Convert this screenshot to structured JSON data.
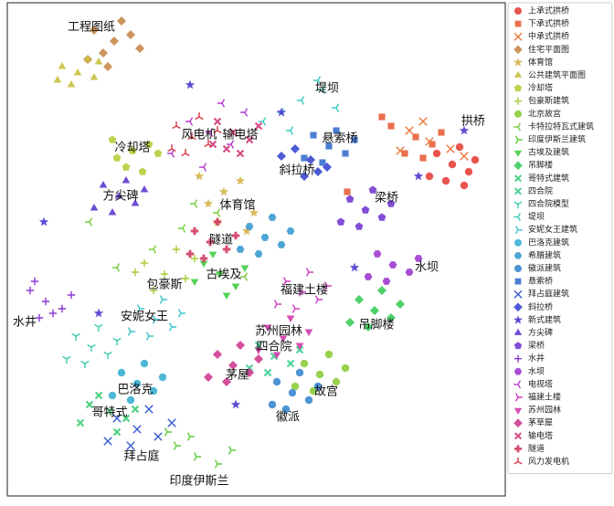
{
  "chart_data": {
    "type": "scatter",
    "xlim": [
      0,
      545
    ],
    "ylim": [
      0,
      540
    ],
    "legend": "right",
    "series": [
      {
        "name": "上承式拱桥",
        "color": "#e8413c",
        "marker": "circle",
        "x": [
          487,
          470,
          505,
          480,
          512,
          495,
          462,
          500
        ],
        "y": [
          363,
          375,
          355,
          345,
          368,
          382,
          350,
          340
        ]
      },
      {
        "name": "下承式拱桥",
        "color": "#e85f3a",
        "marker": "square",
        "x": [
          447,
          420,
          465,
          435,
          475,
          410,
          372,
          455
        ],
        "y": [
          393,
          405,
          385,
          375,
          398,
          415,
          333,
          370
        ]
      },
      {
        "name": "中承式拱桥",
        "color": "#e8783a",
        "marker": "x",
        "x": [
          462,
          440,
          485,
          455,
          500,
          430
        ],
        "y": [
          388,
          400,
          380,
          410,
          372,
          378
        ]
      },
      {
        "name": "住宅平面图",
        "color": "#c8894a",
        "marker": "diamond",
        "x": [
          117,
          95,
          135,
          105,
          145,
          125,
          88,
          110
        ],
        "y": [
          498,
          510,
          505,
          485,
          490,
          520,
          478,
          470
        ]
      },
      {
        "name": "体育馆",
        "color": "#d4b24a",
        "marker": "star",
        "x": [
          237,
          220,
          255,
          270,
          230,
          210,
          262
        ],
        "y": [
          333,
          320,
          345,
          310,
          300,
          350,
          290
        ]
      },
      {
        "name": "公共建筑平面图",
        "color": "#c8c040",
        "marker": "triangle-up",
        "x": [
          77,
          60,
          95,
          70,
          88,
          55,
          100
        ],
        "y": [
          463,
          470,
          458,
          450,
          478,
          455,
          475
        ]
      },
      {
        "name": "冷却塔",
        "color": "#b8cc3a",
        "marker": "pentagon",
        "x": [
          137,
          120,
          155,
          130,
          165,
          115,
          148
        ],
        "y": [
          378,
          370,
          385,
          360,
          375,
          390,
          355
        ]
      },
      {
        "name": "包豪斯建筑",
        "color": "#a6cc3a",
        "marker": "plus",
        "x": [
          172,
          150,
          195,
          160,
          205,
          140,
          185
        ],
        "y": [
          243,
          255,
          238,
          225,
          260,
          245,
          270
        ]
      },
      {
        "name": "北京故宫",
        "color": "#8ccc3a",
        "marker": "circle",
        "x": [
          342,
          325,
          360,
          335,
          370,
          315,
          352
        ],
        "y": [
          133,
          145,
          125,
          115,
          140,
          120,
          155
        ]
      },
      {
        "name": "卡特拉特瓦式建筑",
        "color": "#74cc3a",
        "marker": "tri-left",
        "x": [
          192,
          160,
          230,
          120,
          260,
          90,
          205
        ],
        "y": [
          293,
          270,
          310,
          250,
          240,
          300,
          320
        ]
      },
      {
        "name": "印度伊斯兰建筑",
        "color": "#5ccc3a",
        "marker": "tri-right",
        "x": [
          207,
          185,
          230,
          200,
          245,
          175
        ],
        "y": [
          43,
          55,
          35,
          65,
          50,
          70
        ]
      },
      {
        "name": "古埃及建筑",
        "color": "#44cc44",
        "marker": "triangle-down",
        "x": [
          232,
          215,
          250,
          225,
          260,
          205,
          240
        ],
        "y": [
          243,
          255,
          230,
          265,
          250,
          235,
          220
        ]
      },
      {
        "name": "吊脚楼",
        "color": "#3acc5a",
        "marker": "diamond",
        "x": [
          402,
          385,
          420,
          395,
          430,
          375,
          410
        ],
        "y": [
          203,
          215,
          195,
          185,
          210,
          190,
          225
        ]
      },
      {
        "name": "哥特式建筑",
        "color": "#3acc74",
        "marker": "x-filled",
        "x": [
          112,
          90,
          130,
          100,
          140,
          80,
          120
        ],
        "y": [
          93,
          100,
          85,
          110,
          95,
          80,
          70
        ]
      },
      {
        "name": "四合院",
        "color": "#3acc8c",
        "marker": "x-filled",
        "x": [
          292,
          275,
          310,
          285,
          320,
          265
        ],
        "y": [
          153,
          165,
          145,
          135,
          160,
          140
        ]
      },
      {
        "name": "四合院模型",
        "color": "#3accaa",
        "marker": "tri-down",
        "x": [
          92,
          75,
          110,
          85,
          120,
          65,
          100
        ],
        "y": [
          163,
          175,
          155,
          145,
          170,
          150,
          185
        ]
      },
      {
        "name": "堤坝",
        "color": "#3accc0",
        "marker": "tri-left",
        "x": [
          322,
          300,
          345,
          280,
          360,
          310,
          340
        ],
        "y": [
          433,
          420,
          445,
          410,
          425,
          400,
          455
        ]
      },
      {
        "name": "安妮女王建筑",
        "color": "#3ac4cc",
        "marker": "tri-right",
        "x": [
          162,
          145,
          180,
          155,
          190,
          135,
          170
        ],
        "y": [
          193,
          205,
          185,
          175,
          200,
          180,
          215
        ]
      },
      {
        "name": "巴洛克建筑",
        "color": "#3ab0d0",
        "marker": "circle",
        "x": [
          142,
          125,
          160,
          135,
          170,
          115,
          150
        ],
        "y": [
          123,
          135,
          115,
          105,
          130,
          110,
          145
        ]
      },
      {
        "name": "希腊建筑",
        "color": "#3a9cd0",
        "marker": "hexagon",
        "x": [
          282,
          265,
          300,
          275,
          310,
          255,
          290
        ],
        "y": [
          283,
          295,
          275,
          265,
          290,
          270,
          305
        ]
      },
      {
        "name": "徽派建筑",
        "color": "#3a88d0",
        "marker": "circle",
        "x": [
          312,
          295,
          330,
          305,
          340,
          290,
          320
        ],
        "y": [
          113,
          125,
          105,
          95,
          120,
          100,
          135
        ]
      },
      {
        "name": "悬索桥",
        "color": "#3a70d0",
        "marker": "square",
        "x": [
          352,
          335,
          370,
          345,
          380,
          325,
          360
        ],
        "y": [
          383,
          395,
          375,
          365,
          390,
          370,
          400
        ]
      },
      {
        "name": "拜占庭建筑",
        "color": "#3a5cd0",
        "marker": "x",
        "x": [
          142,
          120,
          165,
          135,
          180,
          110,
          155
        ],
        "y": [
          73,
          85,
          65,
          55,
          80,
          60,
          95
        ]
      },
      {
        "name": "斜拉桥",
        "color": "#3a48d0",
        "marker": "diamond",
        "x": [
          332,
          315,
          350,
          325,
          300,
          340
        ],
        "y": [
          368,
          380,
          360,
          350,
          372,
          355
        ]
      },
      {
        "name": "新式建筑",
        "color": "#4a3ad0",
        "marker": "star",
        "x": [
          40,
          200,
          300,
          450,
          100,
          380,
          250,
          500
        ],
        "y": [
          300,
          450,
          420,
          350,
          200,
          250,
          100,
          400
        ]
      },
      {
        "name": "方尖碑",
        "color": "#5e3ad0",
        "marker": "triangle-up",
        "x": [
          122,
          105,
          140,
          115,
          150,
          95,
          130
        ],
        "y": [
          328,
          340,
          320,
          310,
          335,
          315,
          345
        ]
      },
      {
        "name": "梁桥",
        "color": "#743ad0",
        "marker": "pentagon",
        "x": [
          392,
          375,
          410,
          385,
          420,
          365,
          400
        ],
        "y": [
          313,
          325,
          305,
          295,
          320,
          300,
          335
        ]
      },
      {
        "name": "水井",
        "color": "#8a3ad0",
        "marker": "plus",
        "x": [
          42,
          25,
          60,
          35,
          70,
          30,
          50
        ],
        "y": [
          213,
          225,
          205,
          195,
          220,
          235,
          200
        ]
      },
      {
        "name": "水坝",
        "color": "#a03ad0",
        "marker": "hexagon",
        "x": [
          422,
          405,
          440,
          415,
          450,
          395
        ],
        "y": [
          253,
          265,
          245,
          235,
          260,
          240
        ]
      },
      {
        "name": "电视塔",
        "color": "#b83ad0",
        "marker": "tri-left",
        "x": [
          222,
          200,
          245,
          180,
          260,
          215,
          235
        ],
        "y": [
          398,
          410,
          385,
          375,
          420,
          360,
          430
        ]
      },
      {
        "name": "福建土楼",
        "color": "#cc3ac4",
        "marker": "tri-right",
        "x": [
          322,
          305,
          340,
          315,
          350,
          295,
          330
        ],
        "y": [
          223,
          235,
          215,
          205,
          230,
          210,
          245
        ]
      },
      {
        "name": "苏州园林",
        "color": "#d03aaa",
        "marker": "triangle-down",
        "x": [
          302,
          285,
          320,
          295,
          330,
          275,
          310
        ],
        "y": [
          173,
          185,
          165,
          155,
          180,
          160,
          195
        ]
      },
      {
        "name": "茅草屋",
        "color": "#d03a90",
        "marker": "diamond",
        "x": [
          247,
          230,
          265,
          240,
          275,
          220,
          255
        ],
        "y": [
          143,
          155,
          135,
          125,
          150,
          130,
          165
        ]
      },
      {
        "name": "输电塔",
        "color": "#d03a78",
        "marker": "x-filled",
        "x": [
          247,
          230,
          265,
          240,
          275,
          225,
          255
        ],
        "y": [
          398,
          410,
          390,
          380,
          405,
          385,
          375
        ]
      },
      {
        "name": "隧道",
        "color": "#d03a60",
        "marker": "plus-filled",
        "x": [
          222,
          205,
          240,
          215,
          250,
          200,
          230
        ],
        "y": [
          278,
          290,
          270,
          260,
          285,
          265,
          300
        ]
      },
      {
        "name": "风力发电机",
        "color": "#d83a48",
        "marker": "tri-up",
        "x": [
          202,
          185,
          220,
          195,
          230,
          180,
          210
        ],
        "y": [
          393,
          405,
          385,
          375,
          400,
          380,
          415
        ]
      }
    ],
    "annotations": [
      {
        "text": "工程图纸",
        "x": 92,
        "y": 513
      },
      {
        "text": "堤坝",
        "x": 350,
        "y": 446
      },
      {
        "text": "拱桥",
        "x": 510,
        "y": 410
      },
      {
        "text": "风电机",
        "x": 210,
        "y": 395
      },
      {
        "text": "输电塔",
        "x": 255,
        "y": 395
      },
      {
        "text": "悬索桥",
        "x": 364,
        "y": 391
      },
      {
        "text": "冷却塔",
        "x": 137,
        "y": 381
      },
      {
        "text": "斜拉桥",
        "x": 317,
        "y": 356
      },
      {
        "text": "方尖碑",
        "x": 124,
        "y": 328
      },
      {
        "text": "体育馆",
        "x": 252,
        "y": 318
      },
      {
        "text": "梁桥",
        "x": 415,
        "y": 326
      },
      {
        "text": "隧道",
        "x": 234,
        "y": 280
      },
      {
        "text": "水坝",
        "x": 459,
        "y": 250
      },
      {
        "text": "古埃及",
        "x": 237,
        "y": 242
      },
      {
        "text": "包豪斯",
        "x": 172,
        "y": 231
      },
      {
        "text": "福建土楼",
        "x": 325,
        "y": 225
      },
      {
        "text": "水井",
        "x": 19,
        "y": 190
      },
      {
        "text": "安妮女王",
        "x": 150,
        "y": 196
      },
      {
        "text": "苏州园林",
        "x": 297,
        "y": 180
      },
      {
        "text": "四合院",
        "x": 292,
        "y": 163
      },
      {
        "text": "吊脚楼",
        "x": 404,
        "y": 187
      },
      {
        "text": "茅屋",
        "x": 252,
        "y": 132
      },
      {
        "text": "巴洛克",
        "x": 140,
        "y": 116
      },
      {
        "text": "故宫",
        "x": 349,
        "y": 114
      },
      {
        "text": "哥特式",
        "x": 112,
        "y": 91
      },
      {
        "text": "徽派",
        "x": 307,
        "y": 86
      },
      {
        "text": "拜占庭",
        "x": 147,
        "y": 43
      },
      {
        "text": "印度伊斯兰",
        "x": 210,
        "y": 16
      }
    ]
  }
}
